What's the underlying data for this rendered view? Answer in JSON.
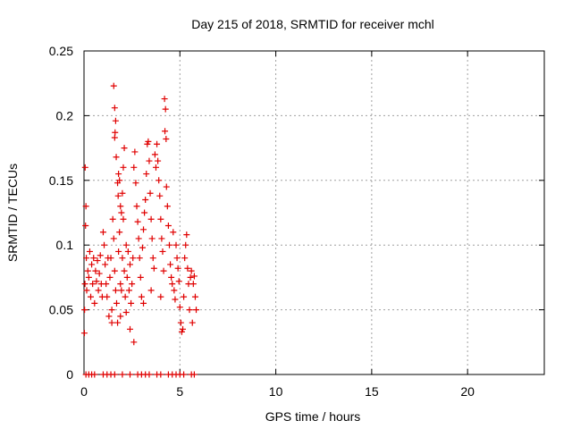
{
  "chart_data": {
    "type": "scatter",
    "title": "Day 215 of 2018, SRMTID for receiver mchl",
    "xlabel": "GPS time / hours",
    "ylabel": "SRMTID / TECUs",
    "xlim": [
      0,
      24
    ],
    "ylim": [
      0,
      0.25
    ],
    "x_ticks": [
      0,
      5,
      10,
      15,
      20
    ],
    "x_tick_labels": [
      "0",
      "5",
      "10",
      "15",
      "20"
    ],
    "y_ticks": [
      0,
      0.05,
      0.1,
      0.15,
      0.2,
      0.25
    ],
    "y_tick_labels": [
      "0",
      "0.05",
      "0.1",
      "0.15",
      "0.2",
      "0.25"
    ],
    "grid": true,
    "marker": "+",
    "series": [
      {
        "name": "SRMTID",
        "color": "#e00000",
        "points": [
          [
            0.02,
            0.032
          ],
          [
            0.03,
            0.05
          ],
          [
            0.05,
            0.07
          ],
          [
            0.06,
            0.16
          ],
          [
            0.08,
            0.115
          ],
          [
            0.1,
            0.13
          ],
          [
            0.12,
            0.09
          ],
          [
            0.14,
            0.065
          ],
          [
            0.2,
            0.08
          ],
          [
            0.25,
            0.075
          ],
          [
            0.3,
            0.095
          ],
          [
            0.35,
            0.06
          ],
          [
            0.4,
            0.085
          ],
          [
            0.45,
            0.07
          ],
          [
            0.5,
            0.09
          ],
          [
            0.55,
            0.055
          ],
          [
            0.6,
            0.08
          ],
          [
            0.65,
            0.072
          ],
          [
            0.7,
            0.088
          ],
          [
            0.75,
            0.065
          ],
          [
            0.8,
            0.078
          ],
          [
            0.85,
            0.092
          ],
          [
            0.9,
            0.07
          ],
          [
            0.95,
            0.06
          ],
          [
            1.0,
            0.11
          ],
          [
            1.05,
            0.1
          ],
          [
            1.1,
            0.085
          ],
          [
            1.15,
            0.07
          ],
          [
            1.2,
            0.06
          ],
          [
            1.25,
            0.09
          ],
          [
            1.3,
            0.045
          ],
          [
            1.35,
            0.075
          ],
          [
            1.4,
            0.09
          ],
          [
            1.45,
            0.05
          ],
          [
            1.5,
            0.12
          ],
          [
            1.55,
            0.105
          ],
          [
            1.6,
            0.08
          ],
          [
            1.65,
            0.065
          ],
          [
            1.7,
            0.055
          ],
          [
            1.75,
            0.04
          ],
          [
            1.8,
            0.095
          ],
          [
            1.85,
            0.11
          ],
          [
            1.9,
            0.07
          ],
          [
            1.95,
            0.065
          ],
          [
            2.0,
            0.09
          ],
          [
            2.05,
            0.12
          ],
          [
            2.1,
            0.08
          ],
          [
            2.15,
            0.06
          ],
          [
            2.2,
            0.1
          ],
          [
            2.25,
            0.075
          ],
          [
            2.3,
            0.095
          ],
          [
            2.35,
            0.065
          ],
          [
            2.4,
            0.085
          ],
          [
            2.45,
            0.055
          ],
          [
            2.5,
            0.07
          ],
          [
            2.55,
            0.09
          ],
          [
            1.55,
            0.223
          ],
          [
            1.6,
            0.206
          ],
          [
            1.65,
            0.196
          ],
          [
            1.62,
            0.187
          ],
          [
            1.6,
            0.183
          ],
          [
            1.68,
            0.168
          ],
          [
            1.75,
            0.148
          ],
          [
            1.78,
            0.138
          ],
          [
            1.8,
            0.155
          ],
          [
            1.85,
            0.15
          ],
          [
            1.9,
            0.13
          ],
          [
            1.95,
            0.125
          ],
          [
            2.0,
            0.14
          ],
          [
            2.05,
            0.16
          ],
          [
            2.1,
            0.175
          ],
          [
            2.6,
            0.16
          ],
          [
            2.65,
            0.172
          ],
          [
            2.7,
            0.148
          ],
          [
            2.75,
            0.13
          ],
          [
            2.8,
            0.118
          ],
          [
            2.85,
            0.105
          ],
          [
            2.9,
            0.09
          ],
          [
            2.95,
            0.075
          ],
          [
            3.0,
            0.06
          ],
          [
            3.05,
            0.098
          ],
          [
            3.1,
            0.112
          ],
          [
            3.15,
            0.125
          ],
          [
            3.2,
            0.135
          ],
          [
            3.25,
            0.155
          ],
          [
            3.3,
            0.178
          ],
          [
            3.35,
            0.18
          ],
          [
            3.4,
            0.165
          ],
          [
            3.45,
            0.14
          ],
          [
            3.5,
            0.12
          ],
          [
            3.55,
            0.105
          ],
          [
            3.6,
            0.09
          ],
          [
            3.65,
            0.082
          ],
          [
            3.7,
            0.17
          ],
          [
            3.75,
            0.16
          ],
          [
            3.8,
            0.178
          ],
          [
            3.85,
            0.165
          ],
          [
            3.9,
            0.15
          ],
          [
            3.95,
            0.138
          ],
          [
            4.0,
            0.12
          ],
          [
            4.05,
            0.105
          ],
          [
            4.1,
            0.095
          ],
          [
            4.15,
            0.08
          ],
          [
            4.2,
            0.213
          ],
          [
            4.25,
            0.205
          ],
          [
            4.22,
            0.188
          ],
          [
            4.28,
            0.182
          ],
          [
            4.3,
            0.145
          ],
          [
            4.35,
            0.13
          ],
          [
            4.4,
            0.115
          ],
          [
            4.45,
            0.1
          ],
          [
            4.5,
            0.085
          ],
          [
            4.55,
            0.075
          ],
          [
            4.6,
            0.07
          ],
          [
            4.65,
            0.11
          ],
          [
            4.7,
            0.065
          ],
          [
            4.75,
            0.058
          ],
          [
            4.8,
            0.1
          ],
          [
            4.85,
            0.09
          ],
          [
            4.9,
            0.082
          ],
          [
            4.95,
            0.072
          ],
          [
            5.0,
            0.052
          ],
          [
            5.05,
            0.04
          ],
          [
            5.1,
            0.033
          ],
          [
            5.15,
            0.035
          ],
          [
            5.2,
            0.06
          ],
          [
            5.25,
            0.09
          ],
          [
            5.3,
            0.1
          ],
          [
            5.35,
            0.108
          ],
          [
            5.4,
            0.082
          ],
          [
            5.45,
            0.07
          ],
          [
            5.5,
            0.05
          ],
          [
            5.55,
            0.075
          ],
          [
            5.6,
            0.08
          ],
          [
            5.65,
            0.04
          ],
          [
            5.7,
            0.07
          ],
          [
            5.75,
            0.076
          ],
          [
            5.8,
            0.06
          ],
          [
            5.85,
            0.05
          ],
          [
            2.6,
            0.025
          ],
          [
            2.4,
            0.035
          ],
          [
            2.2,
            0.048
          ],
          [
            1.9,
            0.045
          ],
          [
            1.45,
            0.04
          ],
          [
            3.1,
            0.055
          ],
          [
            3.5,
            0.065
          ],
          [
            4.0,
            0.06
          ],
          [
            1.0,
            0.0
          ],
          [
            1.2,
            0.0
          ],
          [
            1.4,
            0.0
          ],
          [
            1.6,
            0.0
          ],
          [
            2.0,
            0.0
          ],
          [
            2.4,
            0.0
          ],
          [
            2.8,
            0.0
          ],
          [
            3.0,
            0.0
          ],
          [
            3.2,
            0.0
          ],
          [
            3.4,
            0.0
          ],
          [
            3.8,
            0.0
          ],
          [
            4.0,
            0.0
          ],
          [
            4.4,
            0.0
          ],
          [
            4.6,
            0.0
          ],
          [
            4.8,
            0.0
          ],
          [
            5.0,
            0.0
          ],
          [
            5.2,
            0.0
          ],
          [
            5.6,
            0.0
          ],
          [
            5.75,
            0.0
          ],
          [
            0.1,
            0.0
          ],
          [
            0.25,
            0.0
          ],
          [
            0.4,
            0.0
          ],
          [
            0.55,
            0.0
          ]
        ]
      }
    ]
  }
}
